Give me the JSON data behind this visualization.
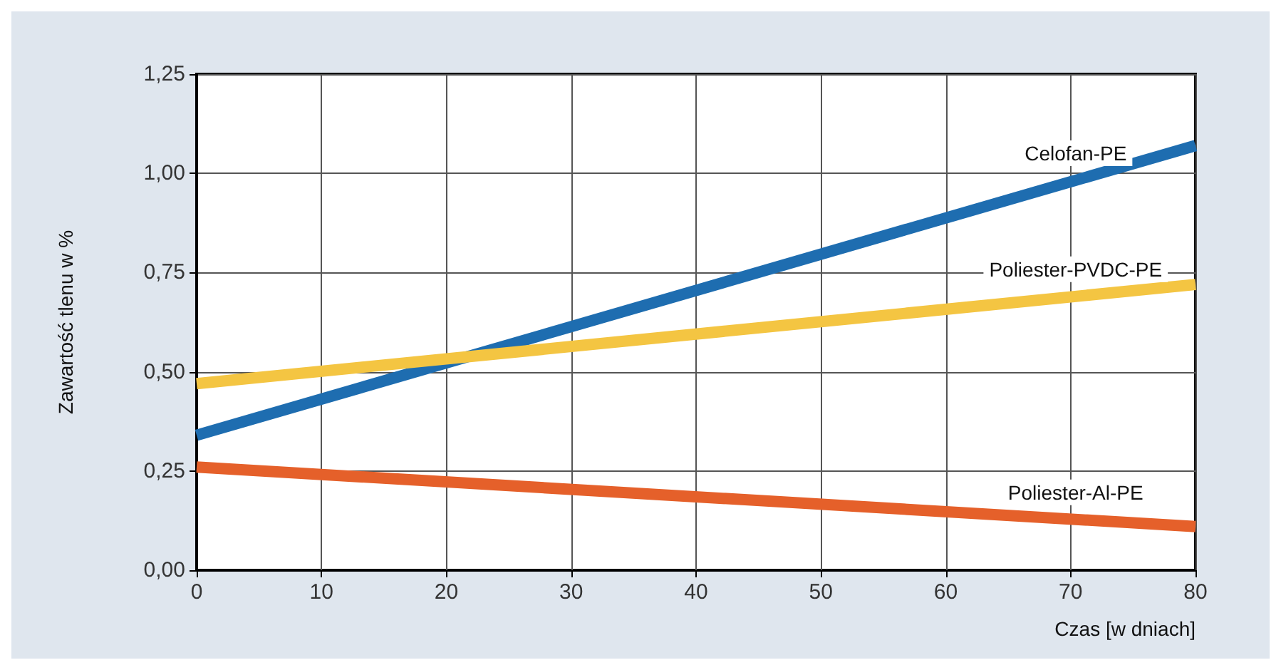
{
  "chart_data": {
    "type": "line",
    "xlabel": "Czas [w dniach]",
    "ylabel": "Zawartość tlenu w %",
    "x": [
      0,
      80
    ],
    "series": [
      {
        "name": "Celofan-PE",
        "color": "#1e6db0",
        "values": [
          0.34,
          1.07
        ]
      },
      {
        "name": "Poliester-PVDC-PE",
        "color": "#f4c542",
        "values": [
          0.47,
          0.72
        ]
      },
      {
        "name": "Poliester-Al-PE",
        "color": "#e5602a",
        "values": [
          0.26,
          0.11
        ]
      }
    ],
    "xlim": [
      0,
      80
    ],
    "xticks": [
      0,
      10,
      20,
      30,
      40,
      50,
      60,
      70,
      80
    ],
    "ylim": [
      0,
      1.25
    ],
    "yticks": [
      {
        "value": 0,
        "label": "0,00"
      },
      {
        "value": 0.25,
        "label": "0,25"
      },
      {
        "value": 0.5,
        "label": "0,50"
      },
      {
        "value": 0.75,
        "label": "0,75"
      },
      {
        "value": 1,
        "label": "1,00"
      },
      {
        "value": 1.25,
        "label": "1,25"
      }
    ],
    "grid": true,
    "legend": false,
    "marker": "none",
    "line_style": "solid"
  }
}
